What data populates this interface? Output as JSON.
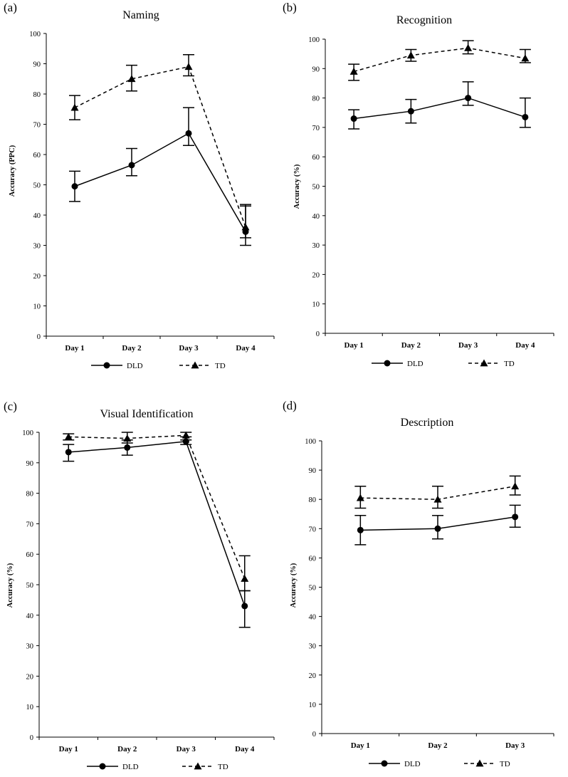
{
  "colors": {
    "line": "#000000",
    "background": "#ffffff"
  },
  "chart_data": [
    {
      "panel": "(a)",
      "type": "line",
      "title": "Naming",
      "xlabel": "",
      "ylabel": "Accuracy (PPC)",
      "ylim": [
        0,
        100
      ],
      "yticks": [
        "0",
        "10",
        "20",
        "30",
        "40",
        "50",
        "60",
        "70",
        "80",
        "90",
        "100"
      ],
      "categories": [
        "Day 1",
        "Day 2",
        "Day 3",
        "Day 4"
      ],
      "legend": {
        "position": "bottom"
      },
      "series": [
        {
          "name": "DLD",
          "style": "solid",
          "marker": "circle",
          "values": [
            49.5,
            56.5,
            67,
            34.5
          ],
          "error_low": [
            44.5,
            53,
            63,
            30
          ],
          "error_high": [
            54.5,
            62,
            75.5,
            43.5
          ]
        },
        {
          "name": "TD",
          "style": "dashed",
          "marker": "triangle",
          "values": [
            75.5,
            85,
            89,
            36
          ],
          "error_low": [
            71.5,
            81,
            86,
            32.5
          ],
          "error_high": [
            79.5,
            89.5,
            93,
            43
          ]
        }
      ]
    },
    {
      "panel": "(b)",
      "type": "line",
      "title": "Recognition",
      "xlabel": "",
      "ylabel": "Accuracy (%)",
      "ylim": [
        0,
        100
      ],
      "yticks": [
        "0",
        "10",
        "20",
        "30",
        "40",
        "50",
        "60",
        "70",
        "80",
        "90",
        "100"
      ],
      "categories": [
        "Day 1",
        "Day 2",
        "Day 3",
        "Day 4"
      ],
      "legend": {
        "position": "bottom"
      },
      "series": [
        {
          "name": "DLD",
          "style": "solid",
          "marker": "circle",
          "values": [
            73,
            75.5,
            80,
            73.5
          ],
          "error_low": [
            69.5,
            71.5,
            77.5,
            70
          ],
          "error_high": [
            76,
            79.5,
            85.5,
            80
          ]
        },
        {
          "name": "TD",
          "style": "dashed",
          "marker": "triangle",
          "values": [
            89,
            94.5,
            97,
            93.5
          ],
          "error_low": [
            86,
            92.5,
            95,
            92
          ],
          "error_high": [
            91.5,
            96.5,
            99.5,
            96.5
          ]
        }
      ]
    },
    {
      "panel": "(c)",
      "type": "line",
      "title": "Visual Identification",
      "xlabel": "",
      "ylabel": "Accuracy (%)",
      "ylim": [
        0,
        100
      ],
      "yticks": [
        "0",
        "10",
        "20",
        "30",
        "40",
        "50",
        "60",
        "70",
        "80",
        "90",
        "100"
      ],
      "categories": [
        "Day 1",
        "Day 2",
        "Day 3",
        "Day 4"
      ],
      "legend": {
        "position": "bottom"
      },
      "series": [
        {
          "name": "DLD",
          "style": "solid",
          "marker": "circle",
          "values": [
            93.5,
            95,
            97,
            43
          ],
          "error_low": [
            90.5,
            92.5,
            96,
            36
          ],
          "error_high": [
            96,
            97.5,
            98.5,
            48
          ]
        },
        {
          "name": "TD",
          "style": "dashed",
          "marker": "triangle",
          "values": [
            98.5,
            98,
            99,
            52
          ],
          "error_low": [
            97.5,
            96.5,
            97.5,
            48
          ],
          "error_high": [
            99.5,
            100,
            100,
            59.5
          ]
        }
      ]
    },
    {
      "panel": "(d)",
      "type": "line",
      "title": "Description",
      "xlabel": "",
      "ylabel": "Accuracy (%)",
      "ylim": [
        0,
        100
      ],
      "yticks": [
        "0",
        "10",
        "20",
        "30",
        "40",
        "50",
        "60",
        "70",
        "80",
        "90",
        "100"
      ],
      "categories": [
        "Day 1",
        "Day 2",
        "Day 3"
      ],
      "legend": {
        "position": "bottom"
      },
      "series": [
        {
          "name": "DLD",
          "style": "solid",
          "marker": "circle",
          "values": [
            69.5,
            70,
            74
          ],
          "error_low": [
            64.5,
            66.5,
            70.5
          ],
          "error_high": [
            74.5,
            74.5,
            78
          ]
        },
        {
          "name": "TD",
          "style": "dashed",
          "marker": "triangle",
          "values": [
            80.5,
            80,
            84.5
          ],
          "error_low": [
            77,
            77,
            81.5
          ],
          "error_high": [
            84.5,
            84.5,
            88
          ]
        }
      ]
    }
  ]
}
